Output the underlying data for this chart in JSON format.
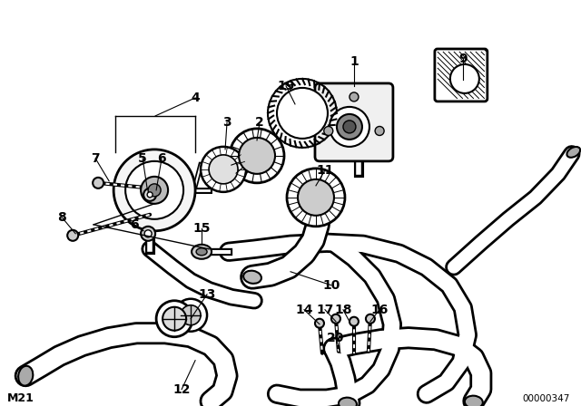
{
  "background_color": "#ffffff",
  "diagram_id": "00000347",
  "model_code": "M21",
  "line_color": "#000000",
  "hose_fill": "#ffffff",
  "hatch_color": "#000000"
}
